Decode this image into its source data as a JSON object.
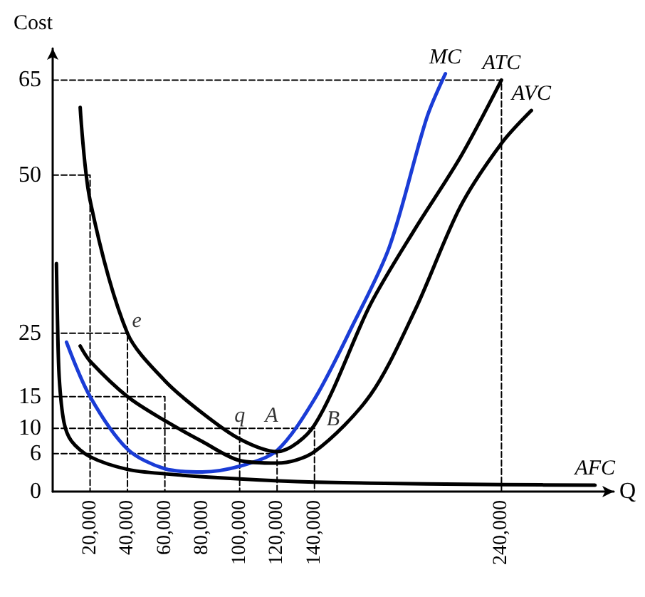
{
  "chart_data": {
    "type": "line",
    "xlabel": "Q",
    "ylabel": "Cost",
    "xlim": [
      0,
      300000
    ],
    "ylim": [
      0,
      70
    ],
    "xticks": [
      {
        "value": 20000,
        "label": "20,000"
      },
      {
        "value": 40000,
        "label": "40,000"
      },
      {
        "value": 60000,
        "label": "60,000"
      },
      {
        "value": 80000,
        "label": "80,000"
      },
      {
        "value": 100000,
        "label": "100,000"
      },
      {
        "value": 120000,
        "label": "120,000"
      },
      {
        "value": 140000,
        "label": "140,000"
      },
      {
        "value": 240000,
        "label": "240,000"
      }
    ],
    "yticks": [
      0,
      6,
      10,
      15,
      25,
      50,
      65
    ],
    "grid": false,
    "legend": false,
    "marker": "none",
    "series": [
      {
        "name": "MC",
        "color": "#1a3cd6",
        "x": [
          7400,
          20000,
          40000,
          60000,
          80000,
          100000,
          120000,
          140000,
          160000,
          180000,
          200000,
          210000
        ],
        "values": [
          23.6,
          15,
          6.7,
          3.6,
          3.1,
          4,
          6.5,
          14.6,
          26,
          38.6,
          59,
          66
        ]
      },
      {
        "name": "ATC",
        "color": "#000000",
        "x": [
          14700,
          20000,
          40000,
          60000,
          80000,
          100000,
          120000,
          140000,
          170000,
          194000,
          218000,
          240000
        ],
        "values": [
          60.7,
          46,
          25,
          17.5,
          12.4,
          8.3,
          6.3,
          10.5,
          29.6,
          41.6,
          52.8,
          65
        ]
      },
      {
        "name": "AVC",
        "color": "#000000",
        "x": [
          14700,
          20000,
          40000,
          60000,
          80000,
          100000,
          120000,
          140000,
          170000,
          194000,
          218000,
          240000,
          256000
        ],
        "values": [
          23,
          20.6,
          15,
          11.2,
          7.9,
          4.9,
          4.5,
          6.3,
          15.3,
          28.8,
          45,
          55,
          60.2
        ]
      },
      {
        "name": "AFC",
        "color": "#000000",
        "x": [
          2000,
          2500,
          3500,
          6000,
          10000,
          20000,
          40000,
          60000,
          100000,
          140000,
          200000,
          240000,
          290000
        ],
        "values": [
          36,
          28,
          18,
          11,
          8,
          5.5,
          3.5,
          2.8,
          2,
          1.5,
          1.2,
          1.1,
          1
        ]
      },
      {
        "color": "#000000",
        "line_style": "dashed",
        "x": [
          0,
          240000,
          240000
        ],
        "values": [
          65,
          65,
          0
        ]
      },
      {
        "color": "#000000",
        "line_style": "dashed",
        "x": [
          0,
          20000,
          20000
        ],
        "values": [
          50,
          50,
          0
        ]
      },
      {
        "color": "#000000",
        "line_style": "dashed",
        "x": [
          0,
          40000,
          40000
        ],
        "values": [
          25,
          25,
          0
        ]
      },
      {
        "color": "#000000",
        "line_style": "dashed",
        "x": [
          0,
          60000,
          60000
        ],
        "values": [
          15,
          15,
          0
        ]
      },
      {
        "color": "#000000",
        "line_style": "dashed",
        "x": [
          0,
          140000,
          140000
        ],
        "values": [
          10,
          10,
          0
        ]
      },
      {
        "color": "#000000",
        "line_style": "dashed",
        "x": [
          0,
          120000,
          120000
        ],
        "values": [
          6,
          6,
          0
        ]
      },
      {
        "color": "#000000",
        "line_style": "dashed",
        "x": [
          100000,
          100000
        ],
        "values": [
          10,
          0
        ]
      }
    ],
    "annotations": [
      {
        "text": "e",
        "x": 45000,
        "y": 25
      },
      {
        "text": "q",
        "x": 100000,
        "y": 10
      },
      {
        "text": "A",
        "x": 117000,
        "y": 10
      },
      {
        "text": "B",
        "x": 150000,
        "y": 9.5
      }
    ]
  }
}
